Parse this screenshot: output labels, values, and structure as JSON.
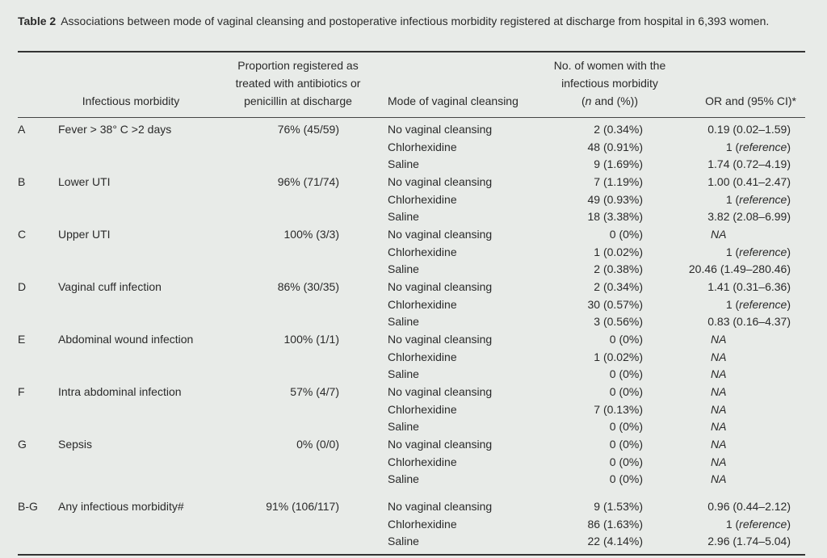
{
  "caption": {
    "label": "Table 2",
    "text": "Associations between mode of vaginal cleansing and postoperative infectious morbidity registered at discharge from hospital in 6,393 women."
  },
  "headers": {
    "morbidity": "Infectious morbidity",
    "proportion_l1": "Proportion registered as",
    "proportion_l2": "treated with antibiotics or",
    "proportion_l3": "penicillin at discharge",
    "mode": "Mode of vaginal cleansing",
    "women_l1": "No. of women with the",
    "women_l2": "infectious morbidity",
    "women_l3": "(n and (%))",
    "or": "OR and (95% CI)*"
  },
  "groups": [
    {
      "letter": "A",
      "name": "Fever > 38° C >2 days",
      "proportion": "76% (45/59)",
      "rows": [
        {
          "mode": "No vaginal cleansing",
          "n": "2 (0.34%)",
          "or": "0.19 (0.02–1.59)"
        },
        {
          "mode": "Chlorhexidine",
          "n": "48 (0.91%)",
          "or": "1 (reference)"
        },
        {
          "mode": "Saline",
          "n": "9 (1.69%)",
          "or": "1.74 (0.72–4.19)"
        }
      ]
    },
    {
      "letter": "B",
      "name": "Lower UTI",
      "proportion": "96% (71/74)",
      "rows": [
        {
          "mode": "No vaginal cleansing",
          "n": "7 (1.19%)",
          "or": "1.00 (0.41–2.47)"
        },
        {
          "mode": "Chlorhexidine",
          "n": "49 (0.93%)",
          "or": "1 (reference)"
        },
        {
          "mode": "Saline",
          "n": "18 (3.38%)",
          "or": "3.82 (2.08–6.99)"
        }
      ]
    },
    {
      "letter": "C",
      "name": "Upper UTI",
      "proportion": "100% (3/3)",
      "rows": [
        {
          "mode": "No vaginal cleansing",
          "n": "0 (0%)",
          "or": "NA"
        },
        {
          "mode": "Chlorhexidine",
          "n": "1 (0.02%)",
          "or": "1 (reference)"
        },
        {
          "mode": "Saline",
          "n": "2 (0.38%)",
          "or": "20.46 (1.49–280.46)"
        }
      ]
    },
    {
      "letter": "D",
      "name": "Vaginal cuff infection",
      "proportion": "86% (30/35)",
      "rows": [
        {
          "mode": "No vaginal cleansing",
          "n": "2 (0.34%)",
          "or": "1.41 (0.31–6.36)"
        },
        {
          "mode": "Chlorhexidine",
          "n": "30 (0.57%)",
          "or": "1 (reference)"
        },
        {
          "mode": "Saline",
          "n": "3 (0.56%)",
          "or": "0.83 (0.16–4.37)"
        }
      ]
    },
    {
      "letter": "E",
      "name": "Abdominal wound infection",
      "proportion": "100% (1/1)",
      "rows": [
        {
          "mode": "No vaginal cleansing",
          "n": "0 (0%)",
          "or": "NA"
        },
        {
          "mode": "Chlorhexidine",
          "n": "1 (0.02%)",
          "or": "NA"
        },
        {
          "mode": "Saline",
          "n": "0 (0%)",
          "or": "NA"
        }
      ]
    },
    {
      "letter": "F",
      "name": "Intra abdominal infection",
      "proportion": "57% (4/7)",
      "rows": [
        {
          "mode": "No vaginal cleansing",
          "n": "0 (0%)",
          "or": "NA"
        },
        {
          "mode": "Chlorhexidine",
          "n": "7 (0.13%)",
          "or": "NA"
        },
        {
          "mode": "Saline",
          "n": "0 (0%)",
          "or": "NA"
        }
      ]
    },
    {
      "letter": "G",
      "name": "Sepsis",
      "proportion": "0% (0/0)",
      "rows": [
        {
          "mode": "No vaginal cleansing",
          "n": "0 (0%)",
          "or": "NA"
        },
        {
          "mode": "Chlorhexidine",
          "n": "0 (0%)",
          "or": "NA"
        },
        {
          "mode": "Saline",
          "n": "0 (0%)",
          "or": "NA"
        }
      ]
    },
    {
      "letter": "B-G",
      "name": "Any infectious morbidity#",
      "proportion": "91% (106/117)",
      "rows": [
        {
          "mode": "No vaginal cleansing",
          "n": "9 (1.53%)",
          "or": "0.96 (0.44–2.12)"
        },
        {
          "mode": "Chlorhexidine",
          "n": "86 (1.63%)",
          "or": "1 (reference)"
        },
        {
          "mode": "Saline",
          "n": "22 (4.14%)",
          "or": "2.96 (1.74–5.04)"
        }
      ]
    }
  ]
}
